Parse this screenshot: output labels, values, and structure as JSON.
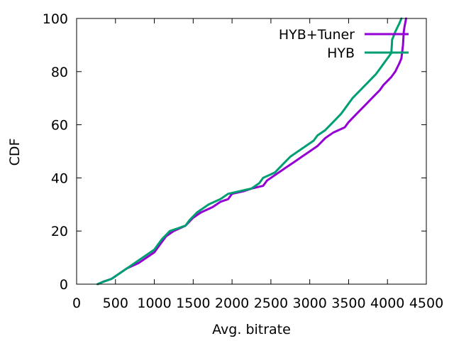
{
  "chart_data": {
    "type": "line",
    "xlabel": "Avg. bitrate",
    "ylabel": "CDF",
    "xlim": [
      0,
      4500
    ],
    "ylim": [
      0,
      100
    ],
    "xticks": [
      "0",
      "500",
      "1000",
      "1500",
      "2000",
      "2500",
      "3000",
      "3500",
      "4000",
      "4500"
    ],
    "yticks": [
      "0",
      "20",
      "40",
      "60",
      "80",
      "100"
    ],
    "grid": false,
    "legend_position": "top-right",
    "series": [
      {
        "name": "HYB+Tuner",
        "color": "#9400d3",
        "points": [
          [
            270,
            0
          ],
          [
            350,
            1
          ],
          [
            450,
            2
          ],
          [
            550,
            4
          ],
          [
            650,
            6
          ],
          [
            800,
            8
          ],
          [
            900,
            10
          ],
          [
            1000,
            12
          ],
          [
            1050,
            14
          ],
          [
            1150,
            18
          ],
          [
            1250,
            20
          ],
          [
            1400,
            22
          ],
          [
            1500,
            25
          ],
          [
            1600,
            27
          ],
          [
            1750,
            29
          ],
          [
            1850,
            31
          ],
          [
            1950,
            32
          ],
          [
            2000,
            34
          ],
          [
            2150,
            35
          ],
          [
            2250,
            36
          ],
          [
            2400,
            37
          ],
          [
            2450,
            39
          ],
          [
            2600,
            42
          ],
          [
            2700,
            44
          ],
          [
            2800,
            46
          ],
          [
            2900,
            48
          ],
          [
            3000,
            50
          ],
          [
            3100,
            52
          ],
          [
            3200,
            55
          ],
          [
            3300,
            57
          ],
          [
            3450,
            59
          ],
          [
            3500,
            61
          ],
          [
            3600,
            64
          ],
          [
            3700,
            67
          ],
          [
            3800,
            70
          ],
          [
            3900,
            73
          ],
          [
            3950,
            75
          ],
          [
            4050,
            78
          ],
          [
            4100,
            80
          ],
          [
            4150,
            83
          ],
          [
            4180,
            85
          ],
          [
            4200,
            90
          ],
          [
            4210,
            95
          ],
          [
            4220,
            97
          ],
          [
            4240,
            100
          ]
        ]
      },
      {
        "name": "HYB",
        "color": "#009e73",
        "points": [
          [
            270,
            0
          ],
          [
            350,
            1
          ],
          [
            450,
            2
          ],
          [
            550,
            4
          ],
          [
            650,
            6
          ],
          [
            800,
            9
          ],
          [
            900,
            11
          ],
          [
            1000,
            13
          ],
          [
            1050,
            15
          ],
          [
            1100,
            17
          ],
          [
            1200,
            20
          ],
          [
            1300,
            21
          ],
          [
            1400,
            22
          ],
          [
            1450,
            24
          ],
          [
            1550,
            27
          ],
          [
            1700,
            30
          ],
          [
            1850,
            32
          ],
          [
            1950,
            34
          ],
          [
            2100,
            35
          ],
          [
            2250,
            36
          ],
          [
            2350,
            38
          ],
          [
            2400,
            40
          ],
          [
            2550,
            42
          ],
          [
            2650,
            45
          ],
          [
            2750,
            48
          ],
          [
            2850,
            50
          ],
          [
            2950,
            52
          ],
          [
            3050,
            54
          ],
          [
            3100,
            56
          ],
          [
            3200,
            58
          ],
          [
            3300,
            61
          ],
          [
            3400,
            64
          ],
          [
            3450,
            66
          ],
          [
            3550,
            70
          ],
          [
            3650,
            73
          ],
          [
            3750,
            76
          ],
          [
            3850,
            79
          ],
          [
            3900,
            81
          ],
          [
            3950,
            83
          ],
          [
            4000,
            85
          ],
          [
            4050,
            87
          ],
          [
            4060,
            92
          ],
          [
            4100,
            95
          ],
          [
            4150,
            98
          ],
          [
            4180,
            100
          ]
        ]
      }
    ]
  }
}
